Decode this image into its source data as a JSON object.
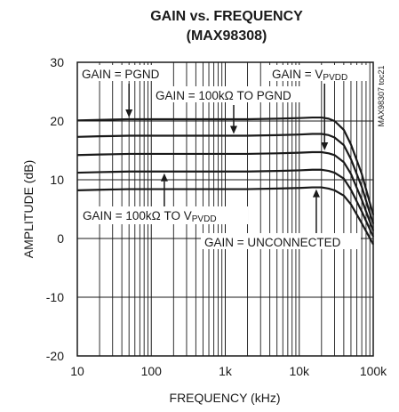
{
  "chart_data": {
    "type": "line",
    "title": "GAIN vs. FREQUENCY",
    "subtitle": "(MAX98308)",
    "xlabel": "FREQUENCY (kHz)",
    "ylabel": "AMPLITUDE (dB)",
    "x_scale": "log",
    "xlim": [
      0.01,
      100
    ],
    "ylim": [
      -20,
      30
    ],
    "grid": true,
    "x_ticks": [
      {
        "value": 0.01,
        "label": "10"
      },
      {
        "value": 0.1,
        "label": "100"
      },
      {
        "value": 1,
        "label": "1k"
      },
      {
        "value": 10,
        "label": "10k"
      },
      {
        "value": 100,
        "label": "100k"
      }
    ],
    "y_ticks": [
      {
        "value": 30,
        "label": "30"
      },
      {
        "value": 20,
        "label": "20"
      },
      {
        "value": 10,
        "label": "10"
      },
      {
        "value": 0,
        "label": "0"
      },
      {
        "value": -10,
        "label": "-10"
      },
      {
        "value": -20,
        "label": "-20"
      }
    ],
    "series": [
      {
        "x": [
          0.01,
          0.02,
          0.05,
          0.1,
          0.2,
          0.5,
          1,
          2,
          5,
          10,
          15,
          20,
          25,
          30,
          40,
          50,
          70,
          100
        ],
        "values": [
          20.1,
          20.2,
          20.3,
          20.3,
          20.3,
          20.3,
          20.3,
          20.3,
          20.4,
          20.5,
          20.6,
          20.6,
          20.4,
          20.0,
          18.5,
          16.0,
          11.0,
          4.0
        ]
      },
      {
        "x": [
          0.01,
          0.02,
          0.05,
          0.1,
          0.2,
          0.5,
          1,
          2,
          5,
          10,
          15,
          20,
          25,
          30,
          40,
          50,
          70,
          100
        ],
        "values": [
          17.3,
          17.4,
          17.5,
          17.5,
          17.5,
          17.5,
          17.5,
          17.5,
          17.6,
          17.7,
          17.8,
          17.8,
          17.6,
          17.2,
          15.9,
          13.5,
          8.8,
          2.5
        ]
      },
      {
        "x": [
          0.01,
          0.02,
          0.05,
          0.1,
          0.2,
          0.5,
          1,
          2,
          5,
          10,
          15,
          20,
          25,
          30,
          40,
          50,
          70,
          100
        ],
        "values": [
          14.2,
          14.3,
          14.4,
          14.4,
          14.4,
          14.4,
          14.4,
          14.4,
          14.5,
          14.6,
          14.7,
          14.7,
          14.5,
          14.2,
          13.0,
          11.0,
          6.6,
          1.3
        ]
      },
      {
        "x": [
          0.01,
          0.02,
          0.05,
          0.1,
          0.2,
          0.5,
          1,
          2,
          5,
          10,
          15,
          20,
          25,
          30,
          40,
          50,
          70,
          100
        ],
        "values": [
          11.2,
          11.3,
          11.4,
          11.4,
          11.4,
          11.4,
          11.4,
          11.4,
          11.5,
          11.6,
          11.7,
          11.7,
          11.5,
          11.2,
          10.2,
          8.3,
          4.6,
          0.3
        ]
      },
      {
        "x": [
          0.01,
          0.02,
          0.05,
          0.1,
          0.2,
          0.5,
          1,
          2,
          5,
          10,
          15,
          20,
          25,
          30,
          40,
          50,
          70,
          100
        ],
        "values": [
          8.2,
          8.3,
          8.4,
          8.4,
          8.4,
          8.4,
          8.4,
          8.4,
          8.5,
          8.6,
          8.7,
          8.7,
          8.5,
          8.2,
          7.3,
          5.8,
          2.6,
          -1.0
        ]
      }
    ],
    "annotations": [
      {
        "id": "pgnd",
        "text": "GAIN = PGND",
        "arrow_to": {
          "x": 0.05,
          "y": 20.3
        }
      },
      {
        "id": "vpvdd",
        "text": "GAIN = V",
        "subscript": "PVDD"
      },
      {
        "id": "r-pgnd",
        "text": "GAIN = 100kΩ TO PGND",
        "arrow_to": {
          "x": 1.3,
          "y": 17.5
        }
      },
      {
        "id": "r-vpvdd",
        "text": "GAIN = 100kΩ TO V",
        "subscript": "PVDD",
        "arrow_to": {
          "x": 0.15,
          "y": 11.4
        }
      },
      {
        "id": "unconnected",
        "text": "GAIN = UNCONNECTED",
        "arrow_to": {
          "x": 17,
          "y": 8.7
        }
      },
      {
        "id": "vpvdd-arrow",
        "arrow_to": {
          "x": 22,
          "y": 14.7
        }
      }
    ],
    "watermark": "MAX98307 toc21",
    "colors": {
      "line": "#1a1a1a",
      "grid": "#1a1a1a",
      "background": "#ffffff"
    }
  }
}
